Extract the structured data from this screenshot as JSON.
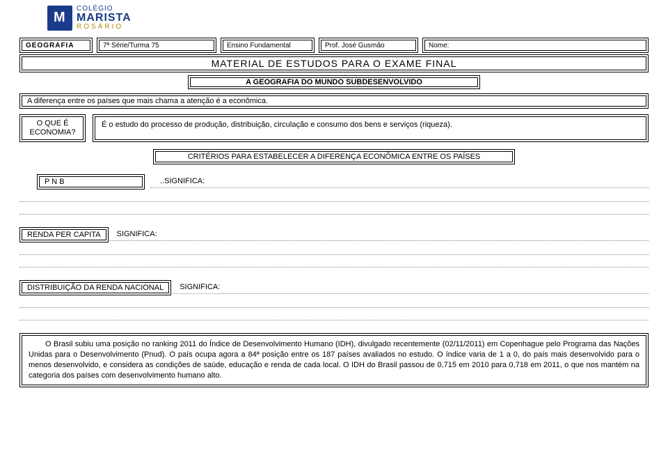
{
  "logo": {
    "line1": "COLÉGIO",
    "line2": "MARISTA",
    "line3": "ROSÁRIO"
  },
  "meta": {
    "subject": "GEOGRAFIA",
    "serie": "7ª Série/Turma 75",
    "ensino": "Ensino Fundamental",
    "prof": "Prof. José Gusmão",
    "nome_label": "Nome:"
  },
  "title": "MATERIAL DE ESTUDOS PARA O EXAME FINAL",
  "subtitle": "A GEOGRAFIA DO MUNDO SUBDESENVOLVIDO",
  "intro": "A diferença entre os países que mais chama a atenção é a econômica.",
  "def": {
    "question": "O QUE É ECONOMIA?",
    "answer": "É o estudo do processo de produção, distribuição, circulação e consumo dos bens e serviços (riqueza)."
  },
  "criteria": "CRITÉRIOS PARA ESTABELECER A DIFERENÇA ECONÔMICA ENTRE OS PAÍSES",
  "fields": {
    "pnb": {
      "label": "P N B",
      "sig": "..SIGNIFICA:"
    },
    "renda": {
      "label": "RENDA PER CAPITA",
      "sig": "SIGNIFICA:"
    },
    "dist": {
      "label": "DISTRIBUIÇÃO DA RENDA NACIONAL",
      "sig": "SIGNIFICA:"
    }
  },
  "paragraph": "O Brasil subiu uma posição no ranking 2011 do Índice de Desenvolvimento Humano (IDH), divulgado recentemente (02/11/2011) em Copenhague pelo Programa das Nações Unidas para o Desenvolvimento (Pnud). O país ocupa agora a 84ª posição entre os 187 países avaliados no estudo. O índice varia de 1 a 0, do país mais desenvolvido para o menos desenvolvido, e considera as condições de saúde, educação e renda de cada local. O IDH do Brasil passou de 0,715 em 2010 para 0,718 em 2011, o que nos mantém na categoria dos países com desenvolvimento humano alto.",
  "colors": {
    "text": "#000000",
    "background": "#ffffff",
    "dotted": "#888888",
    "logo_blue": "#1a3a8a",
    "logo_gold": "#b8860b"
  },
  "typography": {
    "body_fontsize": 11,
    "title_fontsize": 14,
    "meta_fontsize": 10
  }
}
